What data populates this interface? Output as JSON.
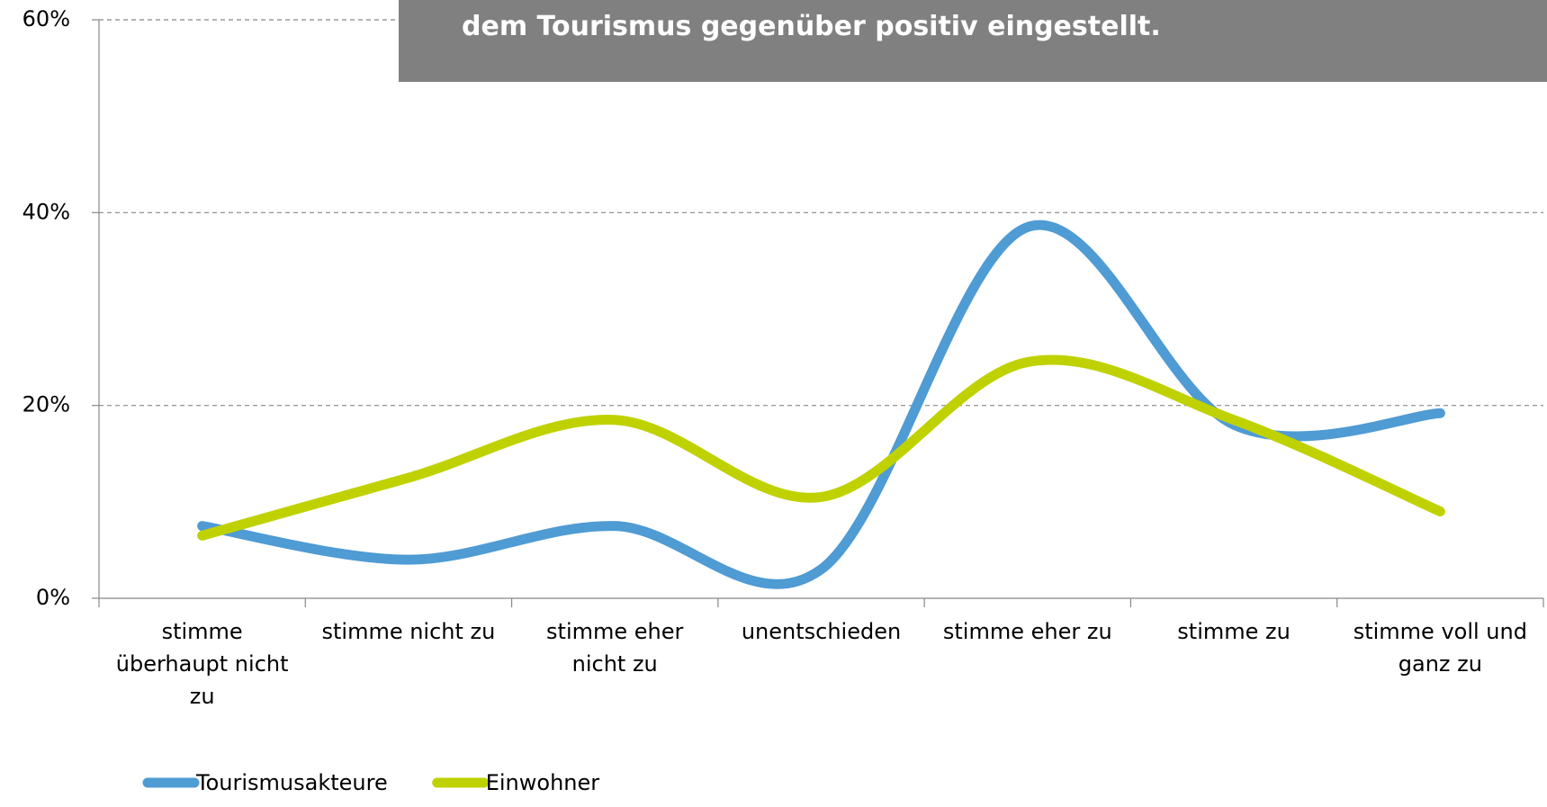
{
  "chart_data": {
    "type": "line",
    "title": "dem Tourismus gegenüber positiv eingestellt.",
    "categories": [
      "stimme überhaupt nicht zu",
      "stimme nicht zu",
      "stimme eher nicht zu",
      "unentschieden",
      "stimme eher zu",
      "stimme zu",
      "stimme voll und ganz zu"
    ],
    "series": [
      {
        "name": "Tourismusakteure",
        "color": "#4f9bd4",
        "values": [
          7.5,
          4,
          7.5,
          3,
          38.5,
          18,
          19.2
        ]
      },
      {
        "name": "Einwohner",
        "color": "#bfd200",
        "values": [
          6.5,
          12.5,
          18.5,
          10.5,
          24.5,
          18.5,
          9
        ]
      }
    ],
    "ylim": [
      0,
      60
    ],
    "yticks": [
      {
        "value": 0,
        "label": "0%"
      },
      {
        "value": 20,
        "label": "20%"
      },
      {
        "value": 40,
        "label": "40%"
      },
      {
        "value": 60,
        "label": "60%"
      }
    ],
    "grid": true,
    "smooth": true,
    "legend": "bottom"
  }
}
